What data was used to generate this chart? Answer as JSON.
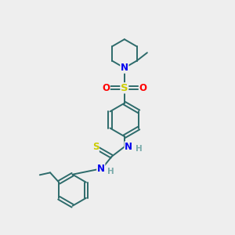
{
  "bg_color": "#eeeeee",
  "bond_color": "#2d6b6b",
  "atom_colors": {
    "N": "#0000ee",
    "S_sulfonyl": "#cccc00",
    "S_thio": "#cccc00",
    "O": "#ff0000",
    "H": "#7aabab"
  },
  "font_size": 8.5,
  "line_width": 1.4
}
